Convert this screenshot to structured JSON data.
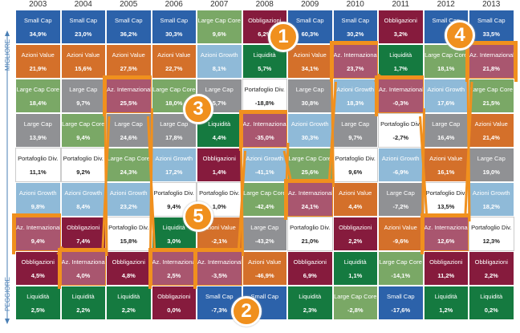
{
  "axis": {
    "top_label": "MIGLIORE",
    "bottom_label": "PEGGIORE"
  },
  "colors": {
    "Small Cap": "#2c62aa",
    "Azioni Value": "#d4702a",
    "Large Cap Core": "#7aa866",
    "Large Cap": "#909194",
    "Portafoglio Div.": "#ffffff",
    "Azioni Growth": "#8fbad8",
    "Az. Internazionali": "#a9566f",
    "Obbligazioni": "#861b3d",
    "Liquidità": "#157a40",
    "highlight": "#f0901e"
  },
  "badges": [
    {
      "label": "1",
      "year": "2008",
      "rank": 1
    },
    {
      "label": "2",
      "year": "2008",
      "rank": 9
    },
    {
      "label": "3",
      "year": "2007",
      "rank": 3
    },
    {
      "label": "4",
      "year": "2012",
      "rank": 1
    },
    {
      "label": "5",
      "year": "2007",
      "rank": 6
    }
  ],
  "chart_data": {
    "type": "table",
    "title": "",
    "highlighted_asset": "Az. Internazionali",
    "years": [
      "2003",
      "2004",
      "2005",
      "2006",
      "2007",
      "2008",
      "2009",
      "2010",
      "2011",
      "2012",
      "2013"
    ],
    "columns": [
      [
        [
          "Small Cap",
          "34,9%"
        ],
        [
          "Azioni Value",
          "21,9%"
        ],
        [
          "Large Cap Core",
          "18,4%"
        ],
        [
          "Large Cap",
          "13,9%"
        ],
        [
          "Portafoglio Div.",
          "11,1%"
        ],
        [
          "Azioni Growth",
          "9,8%"
        ],
        [
          "Az. Internazionali",
          "9,4%"
        ],
        [
          "Obbligazioni",
          "4,5%"
        ],
        [
          "Liquidità",
          "2,5%"
        ]
      ],
      [
        [
          "Small Cap",
          "23,0%"
        ],
        [
          "Azioni Value",
          "15,6%"
        ],
        [
          "Large Cap",
          "9,7%"
        ],
        [
          "Large Cap Core",
          "9,4%"
        ],
        [
          "Portafoglio Div.",
          "9,2%"
        ],
        [
          "Azioni Growth",
          "8,4%"
        ],
        [
          "Obbligazioni",
          "7,4%"
        ],
        [
          "Az. Internazionali",
          "4,0%"
        ],
        [
          "Liquidità",
          "2,2%"
        ]
      ],
      [
        [
          "Small Cap",
          "36,2%"
        ],
        [
          "Azioni Value",
          "27,5%"
        ],
        [
          "Az. Internazionali",
          "25,5%"
        ],
        [
          "Large Cap",
          "24,6%"
        ],
        [
          "Large Cap Core",
          "24,3%"
        ],
        [
          "Azioni Growth",
          "23,2%"
        ],
        [
          "Portafoglio Div.",
          "15,8%"
        ],
        [
          "Obbligazioni",
          "4,8%"
        ],
        [
          "Liquidità",
          "2,2%"
        ]
      ],
      [
        [
          "Small Cap",
          "30,3%"
        ],
        [
          "Azioni Value",
          "22,7%"
        ],
        [
          "Large Cap Core",
          "18,0%"
        ],
        [
          "Large Cap",
          "17,8%"
        ],
        [
          "Azioni Growth",
          "17,2%"
        ],
        [
          "Portafoglio Div.",
          "9,4%"
        ],
        [
          "Liquidità",
          "3,0%"
        ],
        [
          "Az. Internazionali",
          "2,5%"
        ],
        [
          "Obbligazioni",
          "0,0%"
        ]
      ],
      [
        [
          "Large Cap Core",
          "9,6%"
        ],
        [
          "Azioni Growth",
          "8,1%"
        ],
        [
          "Large Cap",
          "5,7%"
        ],
        [
          "Liquidità",
          "4,4%"
        ],
        [
          "Obbligazioni",
          "1,4%"
        ],
        [
          "Portafoglio Div.",
          "1,0%"
        ],
        [
          "Azioni Value",
          "-2,1%"
        ],
        [
          "Az. Internazionali",
          "-3,5%"
        ],
        [
          "Small Cap",
          "-7,3%"
        ]
      ],
      [
        [
          "Obbligazioni",
          "6,2%"
        ],
        [
          "Liquidità",
          "5,7%"
        ],
        [
          "Portafoglio Div.",
          "-18,8%"
        ],
        [
          "Az. Internazionali",
          "-35,0%"
        ],
        [
          "Azioni Growth",
          "-41,1%"
        ],
        [
          "Large Cap Core",
          "-42,4%"
        ],
        [
          "Large Cap",
          "-43,2%"
        ],
        [
          "Azioni Value",
          "-46,9%"
        ],
        [
          "Small Cap",
          ""
        ]
      ],
      [
        [
          "Small Cap",
          "60,3%"
        ],
        [
          "Azioni Value",
          "34,1%"
        ],
        [
          "Large Cap",
          "30,8%"
        ],
        [
          "Azioni Growth",
          "30,3%"
        ],
        [
          "Large Cap Core",
          "25,6%"
        ],
        [
          "Az. Internazionali",
          "24,1%"
        ],
        [
          "Portafoglio Div.",
          "21,0%"
        ],
        [
          "Obbligazioni",
          "6,9%"
        ],
        [
          "Liquidità",
          "2,3%"
        ]
      ],
      [
        [
          "Small Cap",
          "30,2%"
        ],
        [
          "Az. Internazionali",
          "23,7%"
        ],
        [
          "Azioni Growth",
          "18,3%"
        ],
        [
          "Large Cap",
          "9,7%"
        ],
        [
          "Portafoglio Div.",
          "9,6%"
        ],
        [
          "Azioni Value",
          "4,4%"
        ],
        [
          "Obbligazioni",
          "2,2%"
        ],
        [
          "Liquidità",
          "1,1%"
        ],
        [
          "Large Cap Core",
          "-2,8%"
        ]
      ],
      [
        [
          "Obbligazioni",
          "3,2%"
        ],
        [
          "Liquidità",
          "1,7%"
        ],
        [
          "Az. Internazionali",
          "-0,3%"
        ],
        [
          "Portafoglio Div.",
          "-2,7%"
        ],
        [
          "Azioni Growth",
          "-6,9%"
        ],
        [
          "Large Cap",
          "-7,2%"
        ],
        [
          "Azioni Value",
          "-9,6%"
        ],
        [
          "Large Cap Core",
          "-14,1%"
        ],
        [
          "Small Cap",
          "-17,6%"
        ]
      ],
      [
        [
          "Small Cap",
          ""
        ],
        [
          "Large Cap Core",
          "18,1%"
        ],
        [
          "Azioni Growth",
          "17,6%"
        ],
        [
          "Large Cap",
          "16,4%"
        ],
        [
          "Azioni Value",
          "16,1%"
        ],
        [
          "Portafoglio Div.",
          "13,5%"
        ],
        [
          "Az. Internazionali",
          "12,6%"
        ],
        [
          "Obbligazioni",
          "11,2%"
        ],
        [
          "Liquidità",
          "1,2%"
        ]
      ],
      [
        [
          "Small Cap",
          "33,5%"
        ],
        [
          "Az. Internazionali",
          "21,8%"
        ],
        [
          "Large Cap Core",
          "21,5%"
        ],
        [
          "Azioni Value",
          "21,4%"
        ],
        [
          "Large Cap",
          "19,0%"
        ],
        [
          "Azioni Growth",
          "18,2%"
        ],
        [
          "Portafoglio Div.",
          "12,3%"
        ],
        [
          "Obbligazioni",
          "2,2%"
        ],
        [
          "Liquidità",
          "0,2%"
        ]
      ]
    ]
  }
}
